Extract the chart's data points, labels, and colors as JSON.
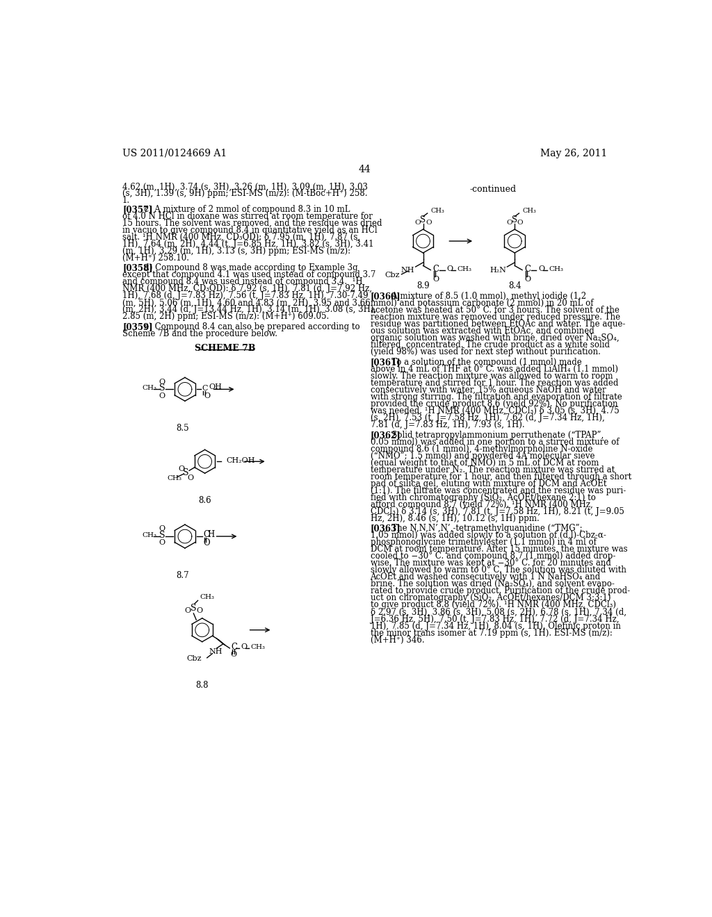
{
  "header_left": "US 2011/0124669 A1",
  "header_right": "May 26, 2011",
  "page_number": "44",
  "background_color": "#ffffff",
  "font_size_body": 8.5,
  "font_size_header": 10,
  "top_lines": [
    "4.62 (m, 1H), 3.74 (s, 3H), 3.26 (m, 1H), 3.09 (m, 1H), 3.03",
    "(s, 3H), 1.39 (s, 9H) ppm; ESI-MS (m/z): (M-tBoc+H⁺) 258.",
    "1."
  ],
  "left_blocks": [
    {
      "tag": "[0357]",
      "lines": [
        "   c) A mixture of 2 mmol of compound 8.3 in 10 mL",
        "of 4.0 N HCl in dioxane was stirred at room temperature for",
        "15 hours. The solvent was removed, and the residue was dried",
        "in vacuo to give compound 8.4 in quantitative yield as an HCl",
        "salt. ¹H NMR (400 MHz, CD₃OD): δ 7.95 (m, 1H), 7.87 (s,",
        "1H), 7.64 (m, 2H), 4.44 (t, J=6.85 Hz, 1H), 3.82 (s, 3H), 3.41",
        "(m, 1H), 3.29 (m, 1H), 3.13 (s, 3H) ppm; ESI-MS (m/z):",
        "(M+H⁺) 258.10."
      ]
    },
    {
      "tag": "[0358]",
      "lines": [
        "   d) Compound 8 was made according to Example 3g",
        "except that compound 4.1 was used instead of compound 3.7",
        "and compound 8.4 was used instead of compound 3.4.  ¹H",
        "NMR (400 MHz, CD₃OD): δ 7.92 (s, 1H), 7.81 (d, J=7.92 Hz,",
        "1H), 7.68 (d, J=7.83 Hz), 7.56 (t, J=7.83 Hz, 1H), 7.30-7.49",
        "(m, 5H), 5.06 (m, 1H), 4.60 and 4.83 (m, 2H), 3.95 and 3.66",
        "(m, 2H), 3.44 (d, J=13.44 Hz, 1H), 3.14 (m, 1H), 3.08 (s, 3H),",
        "2.85 (m, 2H) ppm; ESI-MS (m/z): (M+H⁺) 609.05."
      ]
    },
    {
      "tag": "[0359]",
      "lines": [
        "   e) Compound 8.4 can also be prepared according to",
        "Scheme 7B and the procedure below."
      ]
    }
  ],
  "right_blocks": [
    {
      "tag": "[0360]",
      "lines": [
        "   A mixture of 8.5 (1.0 mmol), methyl iodide (1.2",
        "mmol) and potassium carbonate (2 mmol) in 20 mL of",
        "acetone was heated at 50° C. for 3 hours. The solvent of the",
        "reaction mixture was removed under reduced pressure. The",
        "residue was partitioned between EtOAc and water. The aque-",
        "ous solution was extracted with EtOAc, and combined",
        "organic solution was washed with brine, dried over Na₂SO₄,",
        "filtered, concentrated. The crude product as a white solid",
        "(yield 98%) was used for next step without purification."
      ]
    },
    {
      "tag": "[0361]",
      "lines": [
        "   To a solution of the compound (1 mmol) made",
        "above in 4 mL of THF at 0° C. was added LiAlH₄ (1.1 mmol)",
        "slowly. The reaction mixture was allowed to warm to room",
        "temperature and stirred for 1 hour. The reaction was added",
        "consecutively with water, 15% aqueous NaOH and water",
        "with strong stirring. The filtration and evaporation of filtrate",
        "provided the crude product 8.6 (yield 92%). No purification",
        "was needed. ¹H NMR (400 MHz, CDCl₃) δ 3.05 (s, 3H), 4.75",
        "(s, 2H), 7.53 (t, J=7.58 Hz, 1H), 7.62 (d, J=7.34 Hz, 1H),",
        "7.81 (d, J=7.83 Hz, 1H), 7.93 (s, 1H)."
      ]
    },
    {
      "tag": "[0362]",
      "lines": [
        "   Solid tetrapropylammonium perruthenate (“TPAP”,",
        "0.05 mmol) was added in one portion to a stirred mixture of",
        "compound 8.6 (1 mmol), 4-methylmorpholine N-oxide",
        "(“NMO”; 1.5 mmol) and powdered 4A molecular sieve",
        "(equal weight to that of NMO) in 5 mL of DCM at room",
        "temperature under N₂. The reaction mixture was stirred at",
        "room temperature for 1 hour, and then filtered through a short",
        "pad of silica gel, eluting with mixture of DCM and AcOEt",
        "(1:1). The filtrate was concentrated and the residue was puri-",
        "fied with chromatography (SiO₂, AcOEt/hexane 2:1) to",
        "afford compound 8.7 (yield 72%). ¹H NMR (400 MHz,",
        "CDCl₃) δ 3.14 (s, 3H), 7.81 (t, J=7.58 Hz, 1H), 8.21 (t, J=9.05",
        "Hz, 2H), 8.46 (s, 1H), 10.12 (s, 1H) ppm."
      ]
    },
    {
      "tag": "[0363]",
      "lines": [
        "   The N,N,N’,N’,-tetramethylguanidine (“TMG”;",
        "1.05 mmol) was added slowly to a solution of (d,l)-Cbz-α-",
        "phosphonoglycine trimethylester (1.1 mmol) in 4 ml of",
        "DCM at room temperature. After 15 minutes, the mixture was",
        "cooled to −30° C. and compound 8.7 (1 mmol) added drop-",
        "wise. The mixture was kept at −30° C. for 20 minutes and",
        "slowly allowed to warm to 0° C. The solution was diluted with",
        "AcOEt and washed consecutively with 1 N NaHSO₄ and",
        "brine. The solution was dried (Na₂SO₄), and solvent evapo-",
        "rated to provide crude product. Purification of the crude prod-",
        "uct on chromatography (SiO₂, AcOEt/hexanes/DCM 3:3:1)",
        "to give product 8.8 (yield 72%). ¹H NMR (400 MHz, CDCl₃)",
        "δ 2.97 (s, 3H), 3.86 (s, 3H), 5.08 (s, 2H), 6.78 (s, 1H), 7.34 (d,",
        "J=6.36 Hz, 5H), 7.50 (t, J=7.83 Hz, 1H), 7.72 (d, J=7.34 Hz,",
        "1H), 7.85 (d, J=7.34 Hz, 1H), 8.04 (s, 1H). Olefinic proton in",
        "the minor trans isomer at 7.19 ppm (s, 1H). ESI-MS (m/z):",
        "(M+H⁺) 346."
      ]
    }
  ]
}
